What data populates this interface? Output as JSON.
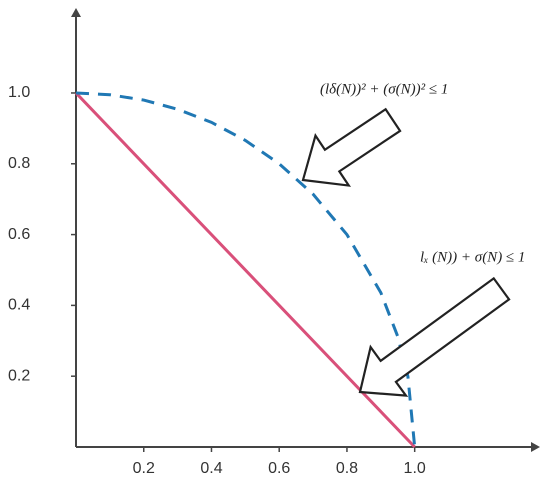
{
  "chart_data": {
    "type": "line",
    "xlim": [
      0,
      1.37
    ],
    "ylim": [
      0,
      1.24
    ],
    "xticks": [
      0.2,
      0.4,
      0.6,
      0.8,
      {
        "value": 1,
        "label": "1.0"
      }
    ],
    "yticks": [
      0.2,
      0.4,
      0.6,
      0.8,
      {
        "value": 1,
        "label": "1.0"
      }
    ],
    "series": [
      {
        "color": "#d9507a",
        "dashed": false,
        "x": [
          0,
          1
        ],
        "values": [
          1,
          0
        ]
      },
      {
        "color": "#2078b4",
        "dashed": true,
        "x": [
          0,
          0.1,
          0.2,
          0.3,
          0.4,
          0.5,
          0.6,
          0.7,
          0.8,
          0.9,
          0.95,
          0.98,
          1
        ],
        "values": [
          1,
          0.995,
          0.98,
          0.954,
          0.917,
          0.866,
          0.8,
          0.714,
          0.6,
          0.436,
          0.312,
          0.199,
          0
        ]
      }
    ],
    "annotations": [
      "(lδ(N))² + (σ(N))²  ≤ 1",
      "lₓ (N)) + σ(N)  ≤ 1"
    ]
  }
}
